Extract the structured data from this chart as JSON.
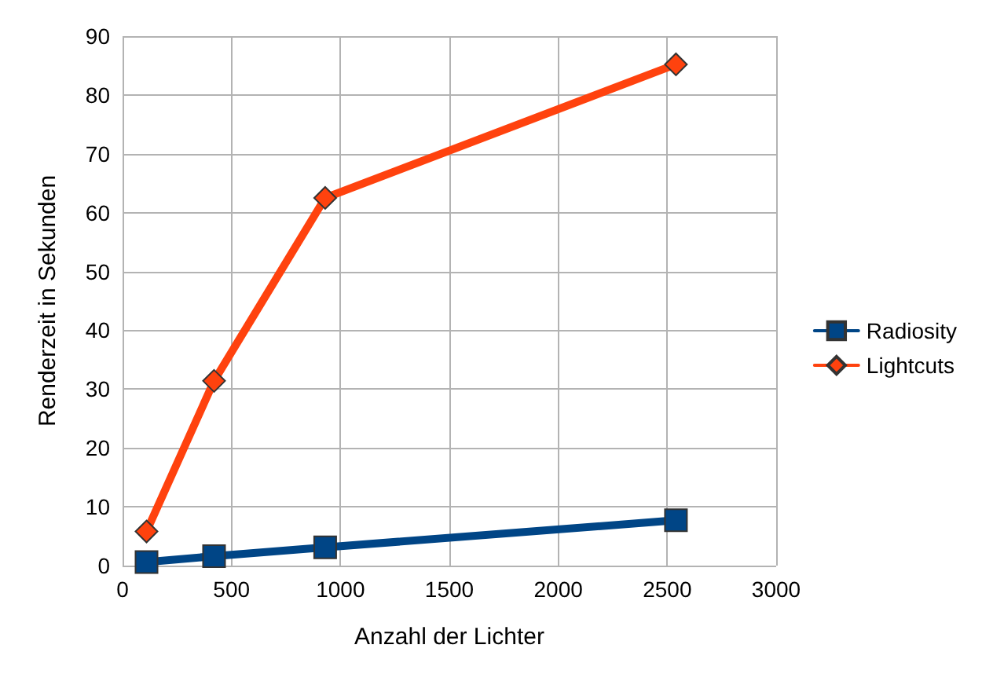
{
  "chart_data": {
    "type": "line",
    "xlabel": "Anzahl der Lichter",
    "ylabel": "Renderzeit in Sekunden",
    "xlim": [
      0,
      3000
    ],
    "xticks": [
      0,
      500,
      1000,
      1500,
      2000,
      2500,
      3000
    ],
    "ylim": [
      0,
      90
    ],
    "yticks": [
      0,
      10,
      20,
      30,
      40,
      50,
      60,
      70,
      80,
      90
    ],
    "grid": true,
    "legend": "right",
    "x": [
      110,
      420,
      930,
      2540
    ],
    "series": [
      {
        "name": "Radiosity",
        "color": "#004586",
        "marker": "square",
        "values": [
          0.6,
          1.6,
          3.1,
          7.7
        ]
      },
      {
        "name": "Lightcuts",
        "color": "#ff420e",
        "marker": "diamond",
        "values": [
          5.8,
          31.4,
          62.5,
          85.2
        ]
      }
    ]
  }
}
